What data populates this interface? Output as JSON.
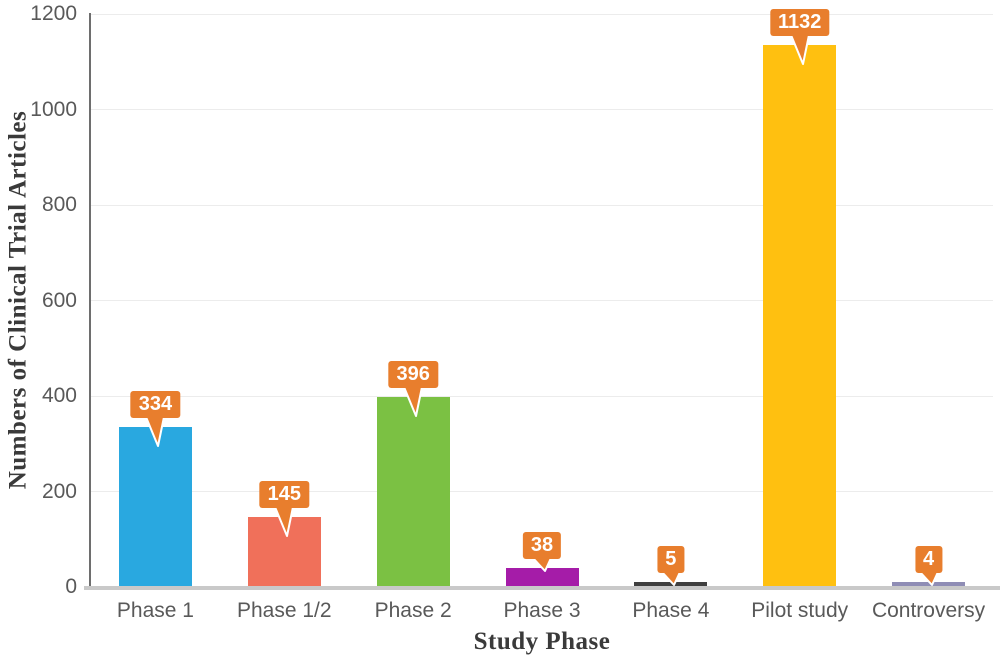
{
  "chart_data": {
    "type": "bar",
    "categories": [
      "Phase 1",
      "Phase 1/2",
      "Phase 2",
      "Phase 3",
      "Phase 4",
      "Pilot study",
      "Controversy"
    ],
    "values": [
      334,
      145,
      396,
      38,
      5,
      1132,
      4
    ],
    "bar_colors": [
      "#29a8e0",
      "#f0705a",
      "#7bc143",
      "#a51ca8",
      "#3f3f3f",
      "#ffc010",
      "#8f8db5"
    ],
    "xlabel": "Study Phase",
    "ylabel": "Numbers of Clinical Trial Articles",
    "ylim": [
      0,
      1200
    ],
    "yticks": [
      0,
      200,
      400,
      600,
      800,
      1000,
      1200
    ],
    "grid": true,
    "legend": "none",
    "data_label_style": {
      "background": "#e87e2d",
      "text_color": "#ffffff"
    },
    "axis_text_color": "#595959",
    "axis_title_color": "#3a3a3a"
  }
}
